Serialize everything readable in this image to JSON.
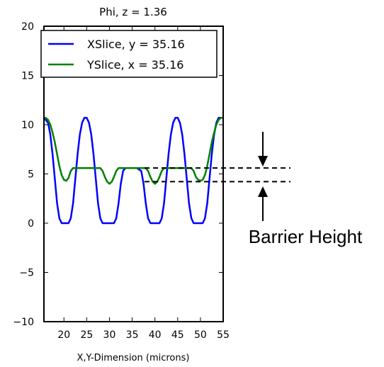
{
  "chart_data": {
    "type": "line",
    "title": "Phi, z = 1.36",
    "xlabel": "X,Y-Dimension (microns)",
    "ylabel": "",
    "xlim": [
      15.6,
      55
    ],
    "ylim": [
      -10,
      20
    ],
    "xticks": [
      20,
      25,
      30,
      35,
      40,
      45,
      50,
      55
    ],
    "yticks": [
      -10,
      -5,
      0,
      5,
      10,
      15,
      20
    ],
    "ytick_labels": [
      "−10",
      "−5",
      "0",
      "5",
      "10",
      "15",
      "20"
    ],
    "grid": false,
    "legend_position": "top",
    "series": [
      {
        "name": "XSlice, y = 35.16",
        "color": "#0000ff",
        "x": [
          15.6,
          16.5,
          17.0,
          17.5,
          18.0,
          18.5,
          19.0,
          19.5,
          20.5,
          21.0,
          21.5,
          22.0,
          22.5,
          23.0,
          23.5,
          24.0,
          24.5,
          25.0,
          25.5,
          26.0,
          26.5,
          27.0,
          27.5,
          28.0,
          28.5,
          29.0,
          29.5,
          30.5,
          31.0,
          31.5,
          32.0,
          32.5,
          33.0,
          33.5,
          34.0,
          35.0,
          36.0,
          37.0,
          37.5,
          38.0,
          38.5,
          39.0,
          39.5,
          40.5,
          41.0,
          41.5,
          42.0,
          42.5,
          43.0,
          43.5,
          44.0,
          44.5,
          45.0,
          45.5,
          46.0,
          46.5,
          47.0,
          47.5,
          48.0,
          48.5,
          49.0,
          49.5,
          50.5,
          51.0,
          51.5,
          52.0,
          52.5,
          53.0,
          53.5,
          54.0,
          54.5,
          55.0
        ],
        "y": [
          10.7,
          10.2,
          9.0,
          7.0,
          4.5,
          2.0,
          0.5,
          0.0,
          0.0,
          0.0,
          0.5,
          2.0,
          4.5,
          7.0,
          9.0,
          10.2,
          10.7,
          10.7,
          10.2,
          9.0,
          7.0,
          4.5,
          2.0,
          0.5,
          0.0,
          0.0,
          0.0,
          0.0,
          0.0,
          0.5,
          2.0,
          4.0,
          5.3,
          5.6,
          5.6,
          5.6,
          5.6,
          5.3,
          4.0,
          2.0,
          0.5,
          0.0,
          0.0,
          0.0,
          0.0,
          0.5,
          2.0,
          4.5,
          7.0,
          9.0,
          10.2,
          10.7,
          10.7,
          10.2,
          9.0,
          7.0,
          4.5,
          2.0,
          0.5,
          0.0,
          0.0,
          0.0,
          0.0,
          0.5,
          2.0,
          4.5,
          7.0,
          9.0,
          10.2,
          10.7,
          10.7,
          10.7
        ]
      },
      {
        "name": "YSlice, x = 35.16",
        "color": "#008000",
        "x": [
          15.6,
          16.0,
          16.5,
          17.0,
          17.5,
          18.0,
          18.5,
          19.0,
          19.5,
          20.0,
          20.5,
          21.0,
          21.5,
          22.0,
          23.0,
          25.0,
          27.0,
          28.0,
          28.5,
          29.0,
          29.5,
          30.0,
          30.5,
          31.0,
          31.5,
          32.0,
          33.0,
          35.0,
          37.0,
          38.0,
          38.5,
          39.0,
          39.5,
          40.0,
          40.5,
          41.0,
          41.5,
          42.0,
          43.0,
          45.0,
          47.0,
          48.0,
          48.5,
          49.0,
          49.5,
          50.0,
          50.5,
          51.0,
          51.5,
          52.0,
          52.5,
          53.0,
          53.5,
          54.0,
          54.5,
          55.0
        ],
        "y": [
          10.7,
          10.7,
          10.5,
          10.0,
          9.2,
          8.2,
          7.0,
          5.8,
          4.9,
          4.4,
          4.3,
          4.6,
          5.3,
          5.6,
          5.6,
          5.6,
          5.6,
          5.6,
          5.3,
          4.7,
          4.2,
          4.0,
          4.2,
          4.7,
          5.3,
          5.6,
          5.6,
          5.6,
          5.6,
          5.6,
          5.3,
          4.7,
          4.2,
          4.0,
          4.2,
          4.7,
          5.3,
          5.6,
          5.6,
          5.6,
          5.6,
          5.6,
          5.3,
          4.7,
          4.4,
          4.3,
          4.4,
          4.9,
          5.8,
          7.0,
          8.2,
          9.2,
          10.0,
          10.5,
          10.7,
          10.7
        ]
      }
    ],
    "annotations": {
      "label": "Barrier Height",
      "upper_level": 5.6,
      "lower_level": 4.0
    }
  }
}
